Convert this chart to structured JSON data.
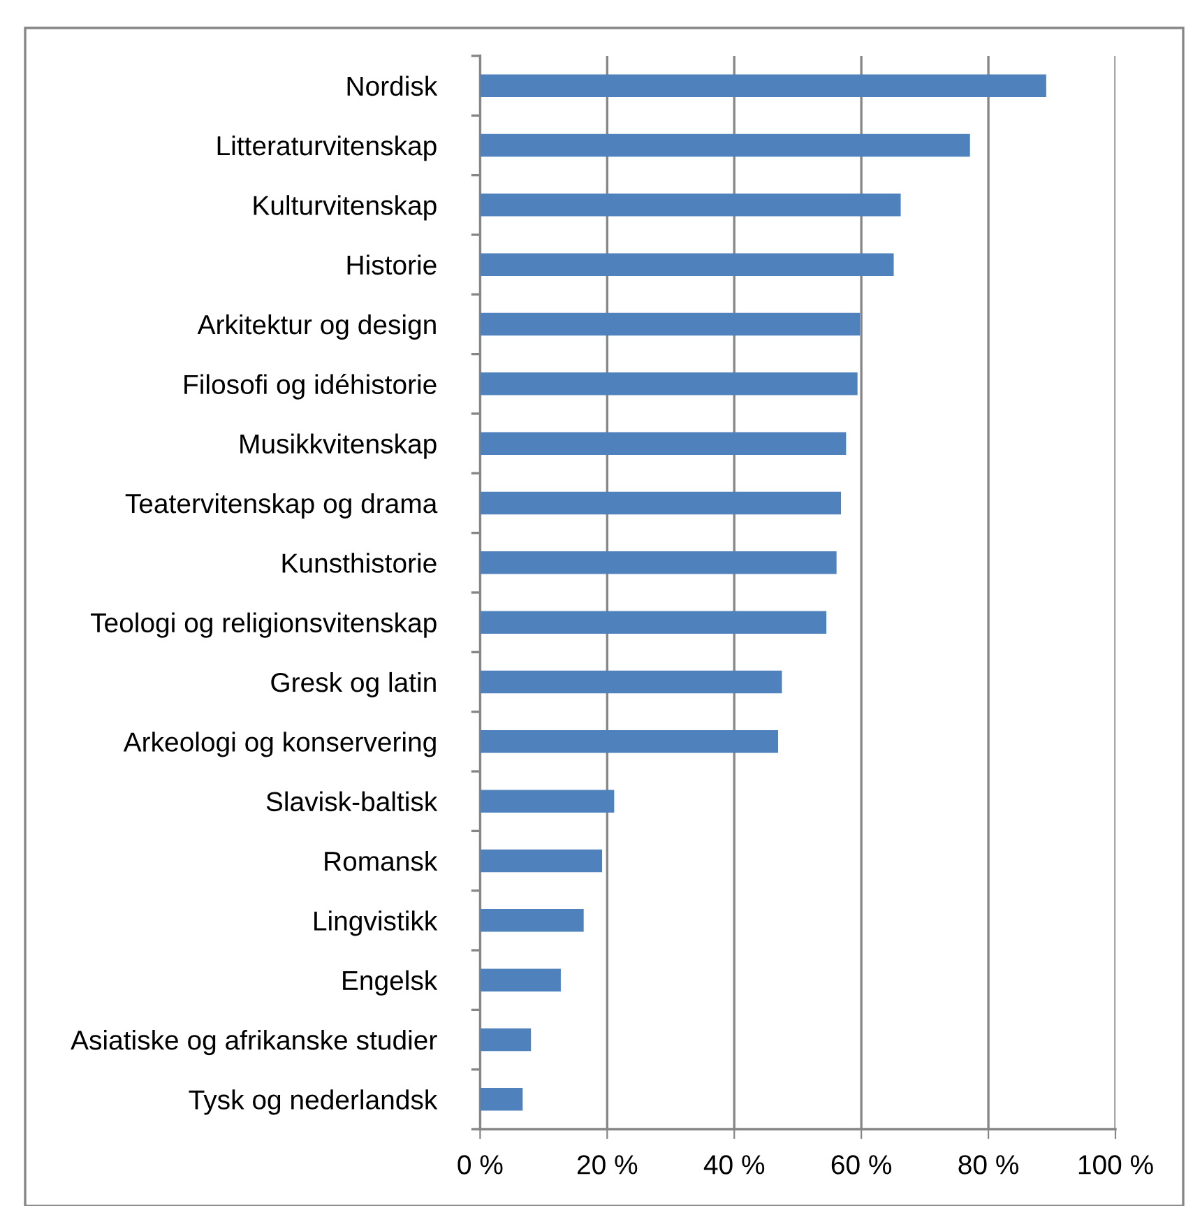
{
  "chart_data": {
    "type": "bar",
    "orientation": "horizontal",
    "categories": [
      "Nordisk",
      "Litteraturvitenskap",
      "Kulturvitenskap",
      "Historie",
      "Arkitektur og design",
      "Filosofi og idéhistorie",
      "Musikkvitenskap",
      "Teatervitenskap og drama",
      "Kunsthistorie",
      "Teologi og religionsvitenskap",
      "Gresk og latin",
      "Arkeologi og konservering",
      "Slavisk-baltisk",
      "Romansk",
      "Lingvistikk",
      "Engelsk",
      "Asiatiske og afrikanske studier",
      "Tysk og nederlandsk"
    ],
    "values": [
      89.1,
      77.1,
      66.2,
      65.1,
      59.8,
      59.4,
      57.6,
      56.8,
      56.1,
      54.5,
      47.5,
      46.9,
      21.1,
      19.2,
      16.3,
      12.7,
      8.0,
      6.7
    ],
    "color": "#4f81bd",
    "xlim": [
      0,
      100
    ],
    "xticks": [
      {
        "value": 0,
        "label": "0 %"
      },
      {
        "value": 20,
        "label": "20 %"
      },
      {
        "value": 40,
        "label": "40 %"
      },
      {
        "value": 60,
        "label": "60 %"
      },
      {
        "value": 80,
        "label": "80 %"
      },
      {
        "value": 100,
        "label": "100 %"
      }
    ],
    "grid": "x",
    "legend": false
  }
}
